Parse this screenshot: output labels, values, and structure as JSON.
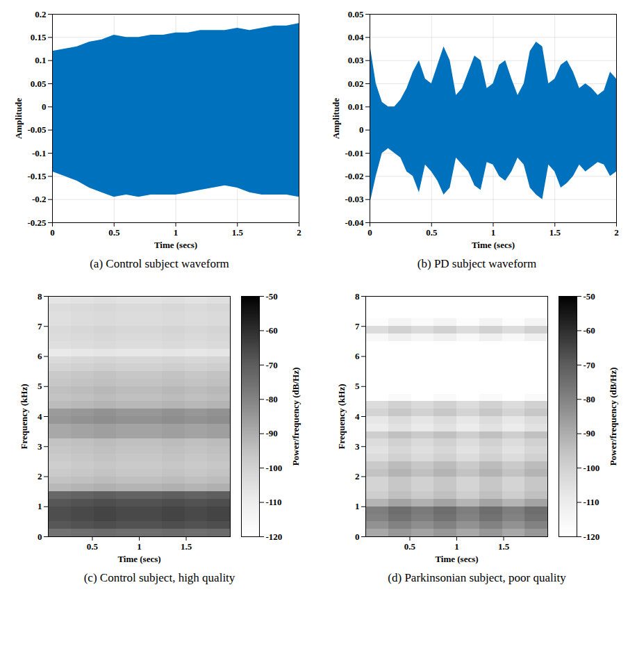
{
  "chart_data": [
    {
      "type": "area",
      "caption": "(a) Control subject waveform",
      "xlabel": "Time (secs)",
      "ylabel": "Amplitude",
      "color": "#0072bd",
      "grid": true,
      "xlim": [
        0,
        2
      ],
      "xticks": [
        0,
        0.5,
        1,
        1.5,
        2
      ],
      "ylim": [
        -0.25,
        0.2
      ],
      "yticks": [
        -0.25,
        -0.2,
        -0.15,
        -0.1,
        -0.05,
        0,
        0.05,
        0.1,
        0.15,
        0.2
      ],
      "x": [
        0,
        0.1,
        0.2,
        0.3,
        0.4,
        0.5,
        0.6,
        0.7,
        0.8,
        0.9,
        1.0,
        1.1,
        1.2,
        1.3,
        1.4,
        1.5,
        1.6,
        1.7,
        1.8,
        1.9,
        2.0
      ],
      "y_high": [
        0.12,
        0.125,
        0.13,
        0.14,
        0.145,
        0.155,
        0.15,
        0.15,
        0.155,
        0.155,
        0.16,
        0.16,
        0.165,
        0.165,
        0.165,
        0.17,
        0.165,
        0.17,
        0.175,
        0.175,
        0.18
      ],
      "y_low": [
        -0.14,
        -0.15,
        -0.16,
        -0.175,
        -0.185,
        -0.195,
        -0.19,
        -0.195,
        -0.19,
        -0.19,
        -0.19,
        -0.185,
        -0.18,
        -0.175,
        -0.17,
        -0.175,
        -0.185,
        -0.19,
        -0.19,
        -0.19,
        -0.195
      ]
    },
    {
      "type": "area",
      "caption": "(b) PD subject waveform",
      "xlabel": "Time (secs)",
      "ylabel": "Amplitude",
      "color": "#0072bd",
      "grid": true,
      "xlim": [
        0,
        2
      ],
      "xticks": [
        0,
        0.5,
        1,
        1.5,
        2
      ],
      "ylim": [
        -0.04,
        0.05
      ],
      "yticks": [
        -0.04,
        -0.03,
        -0.02,
        -0.01,
        0,
        0.01,
        0.02,
        0.03,
        0.04,
        0.05
      ],
      "x": [
        0,
        0.05,
        0.1,
        0.15,
        0.2,
        0.25,
        0.3,
        0.35,
        0.4,
        0.45,
        0.5,
        0.55,
        0.6,
        0.65,
        0.7,
        0.75,
        0.8,
        0.85,
        0.9,
        0.95,
        1.0,
        1.05,
        1.1,
        1.15,
        1.2,
        1.25,
        1.3,
        1.35,
        1.4,
        1.45,
        1.5,
        1.55,
        1.6,
        1.65,
        1.7,
        1.75,
        1.8,
        1.85,
        1.9,
        1.95,
        2.0
      ],
      "y_high": [
        0.037,
        0.02,
        0.012,
        0.01,
        0.01,
        0.013,
        0.018,
        0.025,
        0.03,
        0.022,
        0.02,
        0.028,
        0.036,
        0.03,
        0.015,
        0.018,
        0.025,
        0.032,
        0.03,
        0.018,
        0.02,
        0.028,
        0.03,
        0.022,
        0.015,
        0.02,
        0.034,
        0.038,
        0.036,
        0.02,
        0.022,
        0.028,
        0.03,
        0.025,
        0.018,
        0.02,
        0.018,
        0.015,
        0.017,
        0.025,
        0.022
      ],
      "y_low": [
        -0.032,
        -0.02,
        -0.01,
        -0.008,
        -0.01,
        -0.012,
        -0.018,
        -0.02,
        -0.027,
        -0.015,
        -0.018,
        -0.022,
        -0.028,
        -0.025,
        -0.012,
        -0.015,
        -0.018,
        -0.024,
        -0.026,
        -0.014,
        -0.015,
        -0.02,
        -0.022,
        -0.018,
        -0.012,
        -0.015,
        -0.025,
        -0.028,
        -0.03,
        -0.015,
        -0.018,
        -0.025,
        -0.023,
        -0.02,
        -0.015,
        -0.018,
        -0.016,
        -0.014,
        -0.015,
        -0.02,
        -0.018
      ]
    },
    {
      "type": "heatmap",
      "caption": "(c) Control subject, high quality",
      "xlabel": "Time (secs)",
      "ylabel": "Frequency (kHz)",
      "grid": false,
      "xlim": [
        0.03,
        1.97
      ],
      "xticks": [
        0.5,
        1,
        1.5
      ],
      "ylim": [
        0,
        8
      ],
      "yticks": [
        0,
        1,
        2,
        3,
        4,
        5,
        6,
        7,
        8
      ],
      "x": [
        0.15125,
        0.39375,
        0.63625,
        0.87875,
        1.12125,
        1.36375,
        1.60625,
        1.84875
      ],
      "y": [
        0.125,
        0.375,
        0.625,
        0.875,
        1.125,
        1.375,
        1.625,
        1.875,
        2.125,
        2.375,
        2.625,
        2.875,
        3.125,
        3.375,
        3.625,
        3.875,
        4.125,
        4.375,
        4.625,
        4.875,
        5.125,
        5.375,
        5.625,
        5.875,
        6.125,
        6.375,
        6.625,
        6.875,
        7.125,
        7.375,
        7.625,
        7.875
      ],
      "values": [
        [
          -76,
          -75,
          -74,
          -75,
          -75,
          -74,
          -75,
          -74
        ],
        [
          -69,
          -68,
          -67,
          -68,
          -68,
          -67,
          -68,
          -67
        ],
        [
          -67,
          -66,
          -65,
          -66,
          -66,
          -65,
          -66,
          -65
        ],
        [
          -67,
          -66,
          -65,
          -66,
          -66,
          -65,
          -66,
          -65
        ],
        [
          -69,
          -68,
          -67,
          -68,
          -68,
          -67,
          -68,
          -67
        ],
        [
          -73,
          -72,
          -71,
          -72,
          -72,
          -71,
          -72,
          -71
        ],
        [
          -93,
          -92,
          -91,
          -92,
          -92,
          -91,
          -92,
          -91
        ],
        [
          -96,
          -95,
          -94,
          -95,
          -95,
          -94,
          -95,
          -94
        ],
        [
          -98,
          -97,
          -96,
          -97,
          -97,
          -96,
          -97,
          -96
        ],
        [
          -99,
          -98,
          -97,
          -98,
          -98,
          -97,
          -98,
          -97
        ],
        [
          -98,
          -97,
          -96,
          -97,
          -97,
          -96,
          -97,
          -96
        ],
        [
          -97,
          -96,
          -95,
          -96,
          -96,
          -95,
          -96,
          -95
        ],
        [
          -96,
          -95,
          -94,
          -95,
          -95,
          -94,
          -95,
          -94
        ],
        [
          -89,
          -88,
          -87,
          -88,
          -88,
          -87,
          -88,
          -87
        ],
        [
          -89,
          -88,
          -87,
          -88,
          -88,
          -87,
          -88,
          -87
        ],
        [
          -85,
          -84,
          -83,
          -84,
          -84,
          -83,
          -84,
          -83
        ],
        [
          -86,
          -85,
          -84,
          -85,
          -85,
          -84,
          -85,
          -84
        ],
        [
          -94,
          -93,
          -92,
          -93,
          -93,
          -92,
          -93,
          -92
        ],
        [
          -96,
          -95,
          -94,
          -95,
          -95,
          -94,
          -95,
          -94
        ],
        [
          -95,
          -94,
          -93,
          -94,
          -94,
          -93,
          -94,
          -93
        ],
        [
          -97,
          -96,
          -95,
          -96,
          -96,
          -95,
          -96,
          -95
        ],
        [
          -98,
          -97,
          -96,
          -97,
          -97,
          -96,
          -97,
          -96
        ],
        [
          -101,
          -100,
          -99,
          -100,
          -100,
          -99,
          -100,
          -99
        ],
        [
          -103,
          -102,
          -101,
          -102,
          -102,
          -101,
          -102,
          -101
        ],
        [
          -109,
          -108,
          -107,
          -108,
          -108,
          -107,
          -108,
          -107
        ],
        [
          -105,
          -104,
          -103,
          -104,
          -104,
          -103,
          -104,
          -103
        ],
        [
          -104,
          -103,
          -102,
          -103,
          -103,
          -102,
          -103,
          -102
        ],
        [
          -103,
          -102,
          -101,
          -102,
          -102,
          -101,
          -102,
          -101
        ],
        [
          -105,
          -104,
          -103,
          -104,
          -104,
          -103,
          -104,
          -103
        ],
        [
          -105,
          -104,
          -103,
          -104,
          -104,
          -103,
          -104,
          -103
        ],
        [
          -104,
          -103,
          -102,
          -103,
          -103,
          -102,
          -103,
          -102
        ],
        [
          -107,
          -106,
          -105,
          -106,
          -106,
          -105,
          -106,
          -105
        ]
      ],
      "colorbar": {
        "label": "Power/frequency (dB/Hz)",
        "range": [
          -120,
          -50
        ],
        "ticks": [
          -120,
          -110,
          -100,
          -90,
          -80,
          -70,
          -60,
          -50
        ]
      }
    },
    {
      "type": "heatmap",
      "caption": "(d) Parkinsonian subject, poor quality",
      "xlabel": "Time (secs)",
      "ylabel": "Frequency (kHz)",
      "grid": false,
      "xlim": [
        0.03,
        1.97
      ],
      "xticks": [
        0.5,
        1,
        1.5
      ],
      "ylim": [
        0,
        8
      ],
      "yticks": [
        0,
        1,
        2,
        3,
        4,
        5,
        6,
        7,
        8
      ],
      "x": [
        0.15125,
        0.39375,
        0.63625,
        0.87875,
        1.12125,
        1.36375,
        1.60625,
        1.84875
      ],
      "y": [
        0.125,
        0.375,
        0.625,
        0.875,
        1.125,
        1.375,
        1.625,
        1.875,
        2.125,
        2.375,
        2.625,
        2.875,
        3.125,
        3.375,
        3.625,
        3.875,
        4.125,
        4.375,
        4.625,
        4.875,
        5.125,
        5.375,
        5.625,
        5.875,
        6.125,
        6.375,
        6.625,
        6.875,
        7.125,
        7.375,
        7.625,
        7.875
      ],
      "values": [
        [
          -89,
          -85,
          -88,
          -85,
          -89,
          -85,
          -89,
          -85
        ],
        [
          -84,
          -80,
          -83,
          -80,
          -84,
          -80,
          -84,
          -80
        ],
        [
          -80,
          -76,
          -79,
          -76,
          -80,
          -76,
          -80,
          -76
        ],
        [
          -79,
          -75,
          -78,
          -75,
          -79,
          -75,
          -79,
          -75
        ],
        [
          -92,
          -88,
          -91,
          -88,
          -92,
          -88,
          -92,
          -88
        ],
        [
          -99,
          -95,
          -98,
          -95,
          -99,
          -95,
          -99,
          -95
        ],
        [
          -101,
          -97,
          -100,
          -97,
          -101,
          -97,
          -101,
          -97
        ],
        [
          -101,
          -97,
          -100,
          -97,
          -101,
          -97,
          -101,
          -97
        ],
        [
          -96,
          -92,
          -95,
          -92,
          -96,
          -92,
          -96,
          -92
        ],
        [
          -98,
          -94,
          -97,
          -94,
          -98,
          -94,
          -98,
          -94
        ],
        [
          -104,
          -100,
          -103,
          -100,
          -104,
          -100,
          -104,
          -100
        ],
        [
          -106,
          -102,
          -105,
          -102,
          -106,
          -102,
          -106,
          -102
        ],
        [
          -104,
          -100,
          -103,
          -100,
          -104,
          -100,
          -104,
          -100
        ],
        [
          -99,
          -95,
          -98,
          -95,
          -99,
          -95,
          -99,
          -95
        ],
        [
          -110,
          -106,
          -109,
          -106,
          -110,
          -106,
          -110,
          -106
        ],
        [
          -108,
          -104,
          -107,
          -104,
          -108,
          -104,
          -108,
          -104
        ],
        [
          -101,
          -97,
          -100,
          -97,
          -101,
          -97,
          -101,
          -97
        ],
        [
          -104,
          -100,
          -103,
          -100,
          -104,
          -100,
          -104,
          -100
        ],
        [
          -120,
          -117,
          -120,
          -117,
          -120,
          -117,
          -120,
          -117
        ],
        [
          -120,
          -120,
          -120,
          -120,
          -120,
          -120,
          -120,
          -120
        ],
        [
          -120,
          -120,
          -120,
          -120,
          -120,
          -120,
          -120,
          -120
        ],
        [
          -120,
          -120,
          -120,
          -120,
          -120,
          -120,
          -120,
          -120
        ],
        [
          -120,
          -120,
          -120,
          -120,
          -120,
          -120,
          -120,
          -120
        ],
        [
          -120,
          -120,
          -120,
          -120,
          -120,
          -120,
          -120,
          -120
        ],
        [
          -120,
          -120,
          -120,
          -120,
          -120,
          -120,
          -120,
          -120
        ],
        [
          -120,
          -120,
          -120,
          -120,
          -120,
          -120,
          -120,
          -120
        ],
        [
          -116,
          -112,
          -115,
          -112,
          -116,
          -112,
          -116,
          -112
        ],
        [
          -104,
          -100,
          -103,
          -100,
          -104,
          -100,
          -104,
          -100
        ],
        [
          -118,
          -114,
          -117,
          -114,
          -118,
          -114,
          -118,
          -114
        ],
        [
          -120,
          -120,
          -120,
          -120,
          -120,
          -120,
          -120,
          -120
        ],
        [
          -120,
          -120,
          -120,
          -120,
          -120,
          -120,
          -120,
          -120
        ],
        [
          -120,
          -120,
          -120,
          -120,
          -120,
          -120,
          -120,
          -120
        ]
      ],
      "colorbar": {
        "label": "Power/frequency (dB/Hz)",
        "range": [
          -120,
          -50
        ],
        "ticks": [
          -120,
          -110,
          -100,
          -90,
          -80,
          -70,
          -60,
          -50
        ]
      }
    }
  ]
}
